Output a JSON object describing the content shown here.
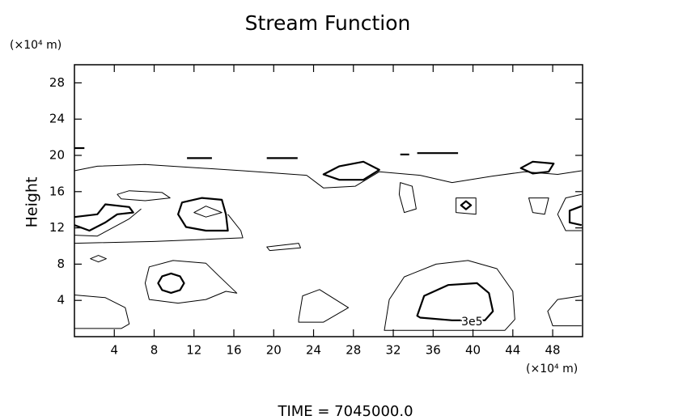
{
  "chart_data": {
    "type": "contour",
    "title": "Stream Function",
    "ylabel": "Height",
    "yunit": "(×10⁴ m)",
    "xunit": "(×10⁴ m)",
    "footer": "TIME  =  7045000.0",
    "xlim": [
      0,
      51
    ],
    "ylim": [
      0,
      30
    ],
    "xticks": [
      4,
      8,
      12,
      16,
      20,
      24,
      28,
      32,
      36,
      40,
      44,
      48
    ],
    "yticks": [
      4,
      8,
      12,
      16,
      20,
      24,
      28
    ],
    "color": "#000000",
    "contours": [
      {
        "x": [
          31.1,
          31.6,
          33.1,
          36.3,
          39.5,
          42.4,
          44.0,
          44.2,
          43.2
        ],
        "y": [
          0.7,
          4.1,
          6.6,
          8.0,
          8.4,
          7.5,
          5.0,
          1.9,
          0.7
        ],
        "linewidth": 1,
        "closed": true
      },
      {
        "x": [
          34.4,
          35.1,
          37.5,
          40.4,
          41.6,
          42.0,
          41.2,
          37.9,
          34.7
        ],
        "y": [
          2.3,
          4.5,
          5.7,
          5.9,
          4.8,
          2.8,
          1.8,
          1.8,
          2.1
        ],
        "linewidth": 2.2,
        "closed": true,
        "label": "3e5"
      },
      {
        "x": [
          0,
          3.1,
          5.1,
          5.5,
          4.7,
          0
        ],
        "y": [
          4.6,
          4.3,
          3.2,
          1.4,
          0.9,
          0.9
        ],
        "linewidth": 1,
        "closed": false
      },
      {
        "x": [
          50.9,
          48.5,
          47.5,
          48.0,
          50.9
        ],
        "y": [
          4.5,
          4.1,
          2.8,
          1.2,
          1.2
        ],
        "linewidth": 1,
        "closed": false
      },
      {
        "x": [
          22.5,
          22.9,
          24.6,
          27.5,
          25.0,
          22.5
        ],
        "y": [
          1.9,
          4.5,
          5.2,
          3.2,
          1.6,
          1.6
        ],
        "linewidth": 1,
        "closed": true
      },
      {
        "x": [
          7.1,
          7.5,
          9.9,
          13.2,
          14.4,
          16.3,
          15.2,
          13.2,
          10.4,
          7.5
        ],
        "y": [
          5.9,
          7.7,
          8.4,
          8.1,
          6.8,
          4.8,
          5.0,
          4.1,
          3.7,
          4.1
        ],
        "linewidth": 1,
        "closed": true
      },
      {
        "x": [
          11.0,
          10.6,
          9.7,
          8.8,
          8.4,
          8.8,
          9.7,
          10.6
        ],
        "y": [
          5.9,
          6.66,
          6.97,
          6.66,
          5.9,
          5.14,
          4.83,
          5.14
        ],
        "linewidth": 2.2,
        "closed": true
      },
      {
        "x": [
          3.2,
          2.4,
          1.6,
          2.4
        ],
        "y": [
          8.6,
          8.96,
          8.6,
          8.24
        ],
        "linewidth": 1,
        "closed": true
      },
      {
        "x": [
          0,
          8,
          16.9,
          16.7,
          15.4
        ],
        "y": [
          10.3,
          10.5,
          10.9,
          11.7,
          13.5
        ],
        "linewidth": 1,
        "closed": false
      },
      {
        "x": [
          0,
          2.3,
          7.1,
          16.9,
          23.3,
          25,
          28.2,
          30.6,
          34.7,
          37.9,
          41.9,
          45.2,
          48.5,
          50.9
        ],
        "y": [
          18.3,
          18.8,
          19.0,
          18.3,
          17.8,
          16.4,
          16.6,
          18.2,
          17.8,
          17.0,
          17.7,
          18.2,
          17.9,
          18.3
        ],
        "linewidth": 1,
        "closed": false
      },
      {
        "x": [
          0,
          1.5,
          3.1,
          4.3,
          5.9,
          5.5,
          3.1,
          2.3,
          0
        ],
        "y": [
          12.3,
          11.7,
          12.6,
          13.5,
          13.7,
          14.3,
          14.6,
          13.5,
          13.2
        ],
        "linewidth": 2.2,
        "closed": false
      },
      {
        "x": [
          0,
          2.3,
          5.5,
          6.7
        ],
        "y": [
          11.2,
          11.1,
          13.0,
          14.1
        ],
        "linewidth": 1,
        "closed": false
      },
      {
        "x": [
          10.4,
          10.8,
          12.8,
          14.8,
          15.2,
          15.4,
          13.2,
          11.2
        ],
        "y": [
          13.5,
          14.8,
          15.3,
          15.1,
          13.5,
          11.7,
          11.7,
          12.1
        ],
        "linewidth": 2.2,
        "closed": true
      },
      {
        "x": [
          12,
          13.2,
          14.8,
          13.2
        ],
        "y": [
          13.7,
          14.4,
          13.7,
          13.2
        ],
        "linewidth": 1,
        "closed": true
      },
      {
        "x": [
          4.3,
          5.5,
          8.8,
          9.6,
          7.1,
          4.7
        ],
        "y": [
          15.7,
          16.1,
          15.9,
          15.3,
          15.0,
          15.2
        ],
        "linewidth": 1,
        "closed": true
      },
      {
        "x": [
          25,
          26.6,
          29.0,
          30.6,
          29,
          26.6
        ],
        "y": [
          17.9,
          18.8,
          19.3,
          18.4,
          17.3,
          17.3
        ],
        "linewidth": 2.2,
        "closed": true
      },
      {
        "x": [
          44.8,
          46.0,
          48.1,
          47.6,
          46
        ],
        "y": [
          18.6,
          19.3,
          19.1,
          18.2,
          18.0
        ],
        "linewidth": 2.2,
        "closed": true
      },
      {
        "x": [
          11.3,
          13.8
        ],
        "y": [
          19.7,
          19.7
        ],
        "linewidth": 2.2,
        "closed": false
      },
      {
        "x": [
          19.3,
          22.4
        ],
        "y": [
          19.7,
          19.7
        ],
        "linewidth": 2.2,
        "closed": false
      },
      {
        "x": [
          34.4,
          38.5
        ],
        "y": [
          20.25,
          20.25
        ],
        "linewidth": 2.2,
        "closed": false
      },
      {
        "x": [
          32.7,
          33.6
        ],
        "y": [
          20.1,
          20.1
        ],
        "linewidth": 2.2,
        "closed": false
      },
      {
        "x": [
          0,
          1.0
        ],
        "y": [
          20.8,
          20.8
        ],
        "linewidth": 2.2,
        "closed": false
      },
      {
        "x": [
          39.8,
          39.3,
          38.8,
          39.3
        ],
        "y": [
          14.5,
          14.95,
          14.5,
          14.05
        ],
        "linewidth": 2.2,
        "closed": true
      },
      {
        "x": [
          38.3,
          40.3,
          40.3,
          38.3
        ],
        "y": [
          15.3,
          15.3,
          13.5,
          13.7
        ],
        "linewidth": 1,
        "closed": true
      },
      {
        "x": [
          19.3,
          22.5,
          22.7,
          19.6
        ],
        "y": [
          9.9,
          10.3,
          9.8,
          9.5
        ],
        "linewidth": 1,
        "closed": true
      },
      {
        "x": [
          50.9,
          49.3,
          48.5,
          49.3,
          50.9
        ],
        "y": [
          15.7,
          15.3,
          13.5,
          11.7,
          11.7
        ],
        "linewidth": 1,
        "closed": false
      },
      {
        "x": [
          50.9,
          49.7,
          49.7,
          50.9
        ],
        "y": [
          14.4,
          13.9,
          12.6,
          12.3
        ],
        "linewidth": 2.2,
        "closed": false
      },
      {
        "x": [
          32.7,
          33.9,
          34.3,
          33.1,
          32.6
        ],
        "y": [
          17.0,
          16.6,
          14.1,
          13.7,
          15.7
        ],
        "linewidth": 1,
        "closed": true
      },
      {
        "x": [
          45.6,
          47.6,
          47.2,
          46
        ],
        "y": [
          15.3,
          15.3,
          13.5,
          13.7
        ],
        "linewidth": 1,
        "closed": true
      }
    ]
  }
}
